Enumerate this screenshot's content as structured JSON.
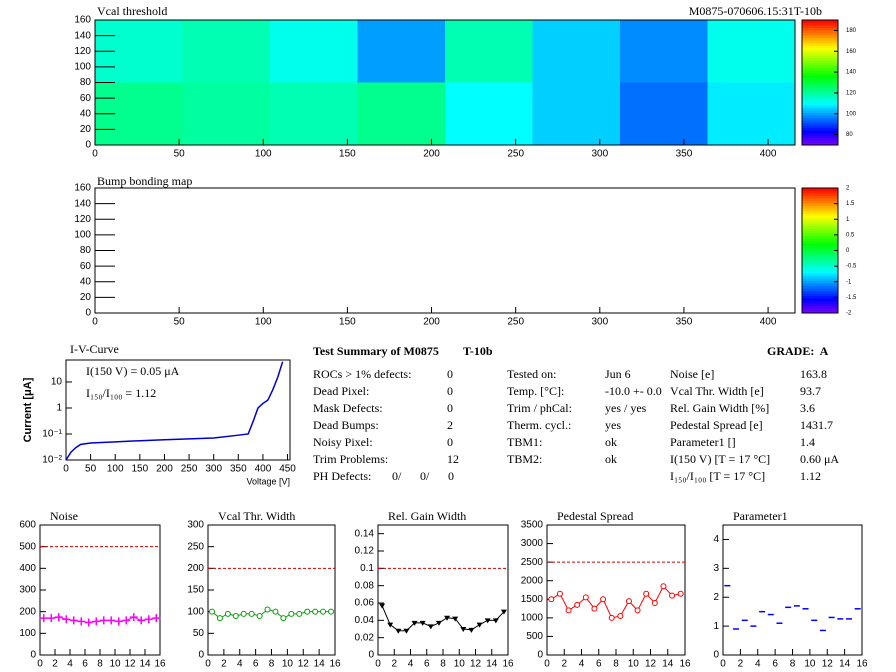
{
  "chart_data": [
    {
      "type": "heatmap",
      "title": "Vcal threshold",
      "annotation": "M0875-070606.15:31T-10b",
      "values": [
        [
          115,
          118,
          112,
          100,
          118,
          105,
          98,
          112
        ],
        [
          122,
          120,
          118,
          122,
          110,
          105,
          95,
          108
        ]
      ],
      "xlim": [
        0,
        416
      ],
      "xticks": [
        0,
        50,
        100,
        150,
        200,
        250,
        300,
        350,
        400
      ],
      "ylim": [
        0,
        160
      ],
      "yticks": [
        0,
        20,
        40,
        60,
        80,
        100,
        120,
        140,
        160
      ],
      "zlim": [
        70,
        190
      ],
      "zticks": [
        80,
        100,
        120,
        140,
        160,
        180
      ]
    },
    {
      "type": "heatmap",
      "title": "Bump bonding map",
      "values": [],
      "xlim": [
        0,
        416
      ],
      "xticks": [
        0,
        50,
        100,
        150,
        200,
        250,
        300,
        350,
        400
      ],
      "ylim": [
        0,
        160
      ],
      "yticks": [
        0,
        20,
        40,
        60,
        80,
        100,
        120,
        140,
        160
      ],
      "zlim": [
        -2,
        2
      ],
      "zticks": [
        -2,
        -1.5,
        -1,
        -0.5,
        0,
        0.5,
        1,
        1.5,
        2
      ]
    },
    {
      "type": "line",
      "title": "I-V-Curve",
      "annotations": [
        "I(150 V) = 0.05 μA",
        "I₁₅₀/I₁₀₀ =  1.12"
      ],
      "y_label": "Current [μA]",
      "x_label": "Voltage [V]",
      "log_y": true,
      "color": "#0000cc",
      "x": [
        0,
        10,
        20,
        30,
        50,
        100,
        150,
        200,
        250,
        300,
        350,
        370,
        380,
        390,
        400,
        410,
        420,
        430,
        440
      ],
      "values": [
        0.01,
        0.02,
        0.03,
        0.04,
        0.045,
        0.05,
        0.055,
        0.06,
        0.065,
        0.07,
        0.09,
        0.1,
        0.3,
        1,
        1.5,
        2,
        5,
        15,
        60
      ],
      "xlim": [
        0,
        455
      ],
      "xticks": [
        0,
        50,
        100,
        150,
        200,
        250,
        300,
        350,
        400,
        450
      ],
      "ylim": [
        0.01,
        70
      ],
      "yticks": [
        {
          "value": 0.01,
          "label": "10⁻²"
        },
        {
          "value": 0.1,
          "label": "10⁻¹"
        },
        1,
        10
      ]
    },
    {
      "type": "line",
      "title": "Noise",
      "color": "#ff00ff",
      "marker": "plus",
      "limit": 500,
      "x": [
        0.5,
        1.5,
        2.5,
        3.5,
        4.5,
        5.5,
        6.5,
        7.5,
        8.5,
        9.5,
        10.5,
        11.5,
        12.5,
        13.5,
        14.5,
        15.5
      ],
      "values": [
        170,
        170,
        175,
        165,
        160,
        155,
        150,
        155,
        160,
        160,
        155,
        160,
        175,
        160,
        165,
        170
      ],
      "xlim": [
        0,
        16
      ],
      "xticks": [
        0,
        2,
        4,
        6,
        8,
        10,
        12,
        14,
        16
      ],
      "ylim": [
        0,
        600
      ],
      "yticks": [
        0,
        100,
        200,
        300,
        400,
        500,
        600
      ]
    },
    {
      "type": "line",
      "title": "Vcal Thr. Width",
      "color": "#00a000",
      "marker": "circle",
      "limit": 200,
      "x": [
        0.5,
        1.5,
        2.5,
        3.5,
        4.5,
        5.5,
        6.5,
        7.5,
        8.5,
        9.5,
        10.5,
        11.5,
        12.5,
        13.5,
        14.5,
        15.5
      ],
      "values": [
        100,
        85,
        95,
        90,
        95,
        95,
        90,
        105,
        100,
        85,
        95,
        95,
        100,
        100,
        100,
        100
      ],
      "xlim": [
        0,
        16
      ],
      "xticks": [
        0,
        2,
        4,
        6,
        8,
        10,
        12,
        14,
        16
      ],
      "ylim": [
        0,
        300
      ],
      "yticks": [
        0,
        50,
        100,
        150,
        200,
        250,
        300
      ]
    },
    {
      "type": "line",
      "title": "Rel. Gain Width",
      "color": "#000000",
      "marker": "triangle",
      "limit": 0.1,
      "x": [
        0.5,
        1.5,
        2.5,
        3.5,
        4.5,
        5.5,
        6.5,
        7.5,
        8.5,
        9.5,
        10.5,
        11.5,
        12.5,
        13.5,
        14.5,
        15.5
      ],
      "values": [
        0.057,
        0.035,
        0.028,
        0.028,
        0.037,
        0.037,
        0.033,
        0.037,
        0.043,
        0.042,
        0.03,
        0.029,
        0.035,
        0.04,
        0.04,
        0.05
      ],
      "xlim": [
        0,
        16
      ],
      "xticks": [
        0,
        2,
        4,
        6,
        8,
        10,
        12,
        14,
        16
      ],
      "ylim": [
        0,
        0.15
      ],
      "yticks": [
        0,
        0.02,
        0.04,
        0.06,
        0.08,
        0.1,
        0.12,
        0.14
      ]
    },
    {
      "type": "line",
      "title": "Pedestal Spread",
      "color": "#ff0000",
      "marker": "circle",
      "limit": 2500,
      "x": [
        0.5,
        1.5,
        2.5,
        3.5,
        4.5,
        5.5,
        6.5,
        7.5,
        8.5,
        9.5,
        10.5,
        11.5,
        12.5,
        13.5,
        14.5,
        15.5
      ],
      "values": [
        1500,
        1650,
        1200,
        1350,
        1550,
        1250,
        1500,
        1000,
        1050,
        1450,
        1200,
        1650,
        1400,
        1850,
        1600,
        1650
      ],
      "xlim": [
        0,
        16
      ],
      "xticks": [
        0,
        2,
        4,
        6,
        8,
        10,
        12,
        14,
        16
      ],
      "ylim": [
        0,
        3500
      ],
      "yticks": [
        0,
        500,
        1000,
        1500,
        2000,
        2500,
        3000,
        3500
      ]
    },
    {
      "type": "scatter",
      "title": "Parameter1",
      "color": "#0000ff",
      "marker": "dash",
      "x": [
        0.5,
        1.5,
        2.5,
        3.5,
        4.5,
        5.5,
        6.5,
        7.5,
        8.5,
        9.5,
        10.5,
        11.5,
        12.5,
        13.5,
        14.5,
        15.5
      ],
      "values": [
        2.4,
        0.9,
        1.2,
        1.0,
        1.5,
        1.4,
        1.1,
        1.65,
        1.7,
        1.6,
        1.2,
        0.85,
        1.3,
        1.25,
        1.25,
        1.6
      ],
      "xlim": [
        0,
        16
      ],
      "xticks": [
        0,
        2,
        4,
        6,
        8,
        10,
        12,
        14,
        16
      ],
      "ylim": [
        0,
        4.5
      ],
      "yticks": [
        0,
        1,
        2,
        3,
        4
      ]
    }
  ],
  "summary": {
    "title": "Test Summary of M0875",
    "test": "T-10b",
    "grade": "GRADE:  A",
    "columns": [
      [
        {
          "label": "ROCs > 1% defects:",
          "value": "0"
        },
        {
          "label": "Dead Pixel:",
          "value": "0"
        },
        {
          "label": "Mask Defects:",
          "value": "0"
        },
        {
          "label": "Dead Bumps:",
          "value": "2"
        },
        {
          "label": "Noisy Pixel:",
          "value": "0"
        },
        {
          "label": "Trim Problems:",
          "value": "12"
        },
        {
          "label": "PH Defects:",
          "values": [
            "0/",
            "0/",
            "0"
          ],
          "colors": [
            "#000000",
            "#ff0000",
            "#0000ff"
          ]
        }
      ],
      [
        {
          "label": "Tested on:",
          "value": "Jun 6"
        },
        {
          "label": "Temp. [°C]:",
          "value": "-10.0 +- 0.0"
        },
        {
          "label": "Trim / phCal:",
          "value": "yes / yes"
        },
        {
          "label": "Therm. cycl.:",
          "value": "yes"
        },
        {
          "label": "TBM1:",
          "value": "ok"
        },
        {
          "label": "TBM2:",
          "value": "ok"
        }
      ],
      [
        {
          "label": "Noise [e]",
          "value": "163.8"
        },
        {
          "label": "Vcal Thr. Width [e]",
          "value": "93.7"
        },
        {
          "label": "Rel. Gain Width [%]",
          "value": "3.6"
        },
        {
          "label": "Pedestal Spread [e]",
          "value": "1431.7"
        },
        {
          "label": "Parameter1 []",
          "value": "1.4"
        },
        {
          "label": "I(150 V) [T = 17 °C]",
          "value": "0.60 μA"
        },
        {
          "label": "I₁₅₀/I₁₀₀ [T = 17 °C]",
          "value": "1.12"
        }
      ]
    ]
  }
}
